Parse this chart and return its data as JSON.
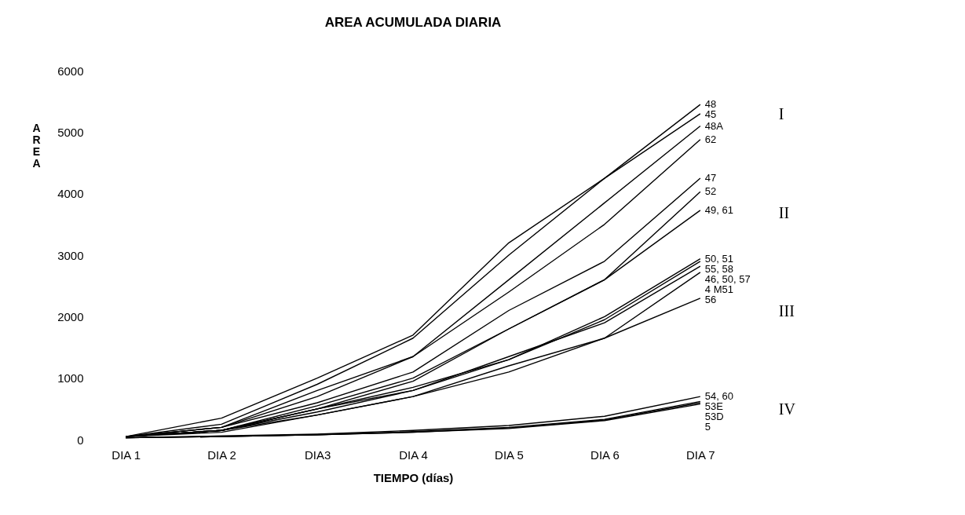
{
  "chart_data": {
    "type": "line",
    "title": "AREA ACUMULADA DIARIA",
    "xlabel": "TIEMPO (días)",
    "ylabel": "AREA",
    "categories": [
      "DIA 1",
      "DIA 2",
      "DIA3",
      "DIA 4",
      "DIA 5",
      "DIA 6",
      "DIA 7"
    ],
    "ylim": [
      0,
      6000
    ],
    "yticks": [
      0,
      1000,
      2000,
      3000,
      4000,
      5000,
      6000
    ],
    "grid": false,
    "legend": false,
    "marker": "none",
    "line_style": "solid",
    "series": [
      {
        "name": "48",
        "color": "#000000",
        "values": [
          50,
          350,
          1000,
          1700,
          3200,
          4250,
          5450
        ]
      },
      {
        "name": "45",
        "color": "#000000",
        "values": [
          50,
          250,
          900,
          1650,
          3000,
          4250,
          5300
        ]
      },
      {
        "name": "48A",
        "color": "#000000",
        "values": [
          50,
          200,
          800,
          1350,
          2600,
          3850,
          5100
        ]
      },
      {
        "name": "62",
        "color": "#000000",
        "values": [
          50,
          200,
          700,
          1350,
          2400,
          3500,
          4880
        ]
      },
      {
        "name": "47",
        "color": "#000000",
        "values": [
          50,
          200,
          600,
          1100,
          2100,
          2900,
          4250
        ]
      },
      {
        "name": "52",
        "color": "#000000",
        "values": [
          50,
          150,
          550,
          1000,
          1800,
          2600,
          4030
        ]
      },
      {
        "name": "49, 61",
        "color": "#000000",
        "values": [
          50,
          150,
          500,
          950,
          1800,
          2600,
          3730
        ]
      },
      {
        "name": "50, 51",
        "color": "#000000",
        "values": [
          50,
          150,
          500,
          850,
          1300,
          2000,
          2940
        ]
      },
      {
        "name": "55, 58",
        "color": "#000000",
        "values": [
          50,
          150,
          500,
          800,
          1300,
          1950,
          2900
        ]
      },
      {
        "name": "46, 50, 57",
        "color": "#000000",
        "values": [
          50,
          150,
          450,
          800,
          1350,
          1900,
          2820
        ]
      },
      {
        "name": "4 M51",
        "color": "#000000",
        "values": [
          50,
          150,
          400,
          700,
          1100,
          1650,
          2720
        ]
      },
      {
        "name": "56",
        "color": "#000000",
        "values": [
          50,
          120,
          400,
          700,
          1200,
          1650,
          2300
        ]
      },
      {
        "name": "54, 60",
        "color": "#000000",
        "values": [
          30,
          60,
          90,
          150,
          230,
          380,
          700
        ]
      },
      {
        "name": "53E",
        "color": "#000000",
        "values": [
          30,
          50,
          80,
          130,
          200,
          330,
          620
        ]
      },
      {
        "name": "53D",
        "color": "#000000",
        "values": [
          30,
          50,
          80,
          120,
          190,
          320,
          600
        ]
      },
      {
        "name": "5",
        "color": "#000000",
        "values": [
          30,
          50,
          80,
          120,
          180,
          310,
          580
        ]
      }
    ],
    "annotations": [
      "I",
      "II",
      "III",
      "IV"
    ]
  }
}
